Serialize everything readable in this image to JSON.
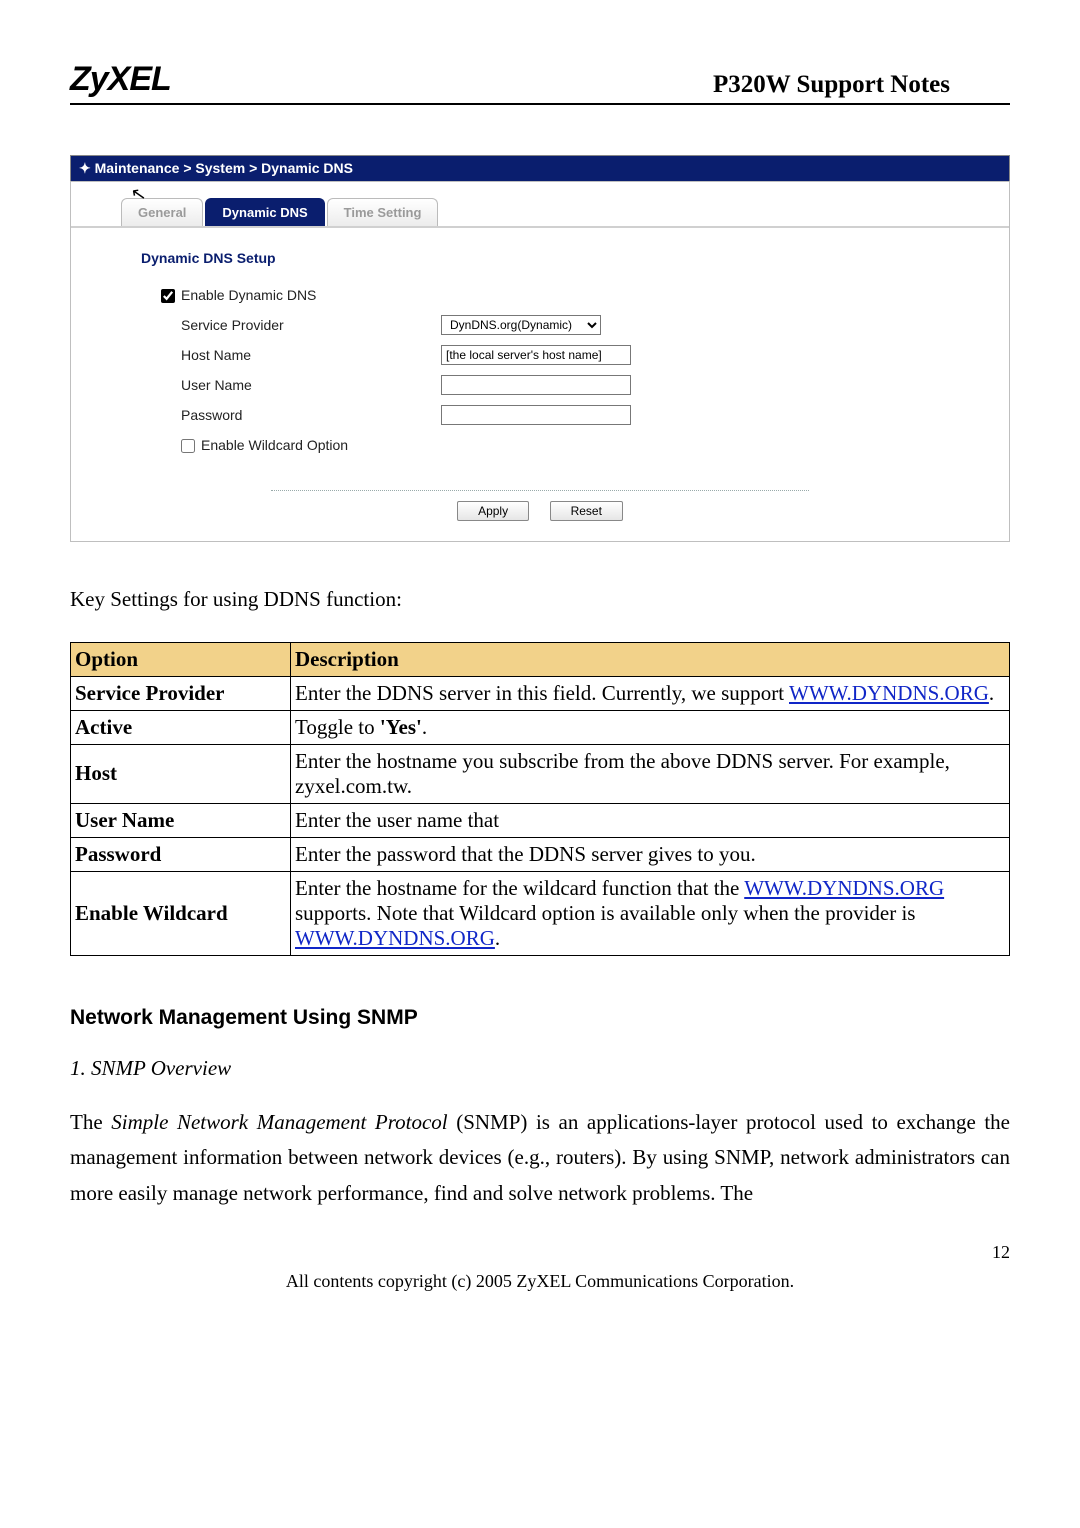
{
  "header": {
    "brand": "ZyXEL",
    "title": "P320W Support Notes"
  },
  "screenshot": {
    "breadcrumb_prefix": "✦ ",
    "breadcrumb": "Maintenance > System > Dynamic DNS",
    "tabs": {
      "general": "General",
      "ddns": "Dynamic DNS",
      "time": "Time Setting"
    },
    "section_label": "Dynamic DNS Setup",
    "rows": {
      "enable_ddns": "Enable Dynamic DNS",
      "service_provider": "Service Provider",
      "host_name": "Host Name",
      "user_name": "User Name",
      "password": "Password",
      "enable_wildcard": "Enable Wildcard Option"
    },
    "values": {
      "enable_ddns_checked": true,
      "service_provider_value": "DynDNS.org(Dynamic)",
      "host_name_value": "[the local server's host name]",
      "user_name_value": "",
      "password_value": "",
      "enable_wildcard_checked": false
    },
    "buttons": {
      "apply": "Apply",
      "reset": "Reset"
    }
  },
  "key_settings_intro": "Key Settings for using DDNS function:",
  "table": {
    "head": {
      "option": "Option",
      "desc": "Description"
    },
    "rows": {
      "sp": {
        "k": "Service Provider",
        "d1": "Enter the DDNS server in this field. Currently, we support ",
        "link": "WWW.DYNDNS.ORG",
        "d2": "."
      },
      "active": {
        "k": "Active",
        "d1": "Toggle to ",
        "bold": "'Yes'",
        "d2": "."
      },
      "host": {
        "k": "Host",
        "d": "Enter the hostname you subscribe from the above DDNS server. For example, zyxel.com.tw."
      },
      "user": {
        "k": "User Name",
        "d": "Enter the user name that"
      },
      "pwd": {
        "k": "Password",
        "d": "Enter the password that the DDNS server gives to you."
      },
      "wc": {
        "k": "Enable Wildcard",
        "d1": "Enter the hostname for the wildcard function that the ",
        "link1": "WWW.DYNDNS.ORG",
        "d2": " supports. Note that Wildcard option is available only when the provider is ",
        "link2": "WWW.DYNDNS.ORG",
        "d3": "."
      }
    }
  },
  "section2": {
    "title": "Network Management Using SNMP",
    "sub": "1. SNMP Overview",
    "para_a": "The ",
    "para_em": "Simple Network Management Protocol",
    "para_b": " (SNMP) is an applications-layer protocol used to exchange the management information between network devices (e.g., routers). By using SNMP, network administrators can more easily manage network performance, find and solve network problems. The"
  },
  "footer": {
    "page": "12",
    "copyright": "All contents copyright (c) 2005 ZyXEL Communications Corporation."
  }
}
